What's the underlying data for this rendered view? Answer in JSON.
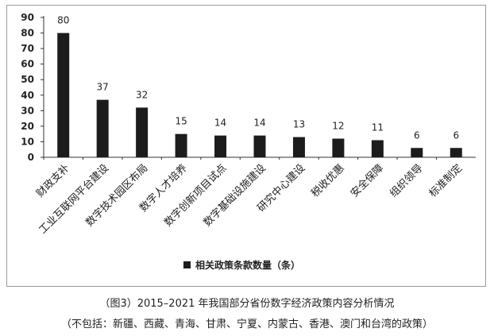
{
  "chart_data": {
    "type": "bar",
    "categories": [
      "财政支补",
      "工业互联网平台建设",
      "数字技术园区布局",
      "数字人才培养",
      "数字创新项目试点",
      "数字基础设施建设",
      "研究中心建设",
      "税收优惠",
      "安全保障",
      "组织领导",
      "标准制定"
    ],
    "series": [
      {
        "name": "相关政策条款数量（条）",
        "values": [
          80,
          37,
          32,
          15,
          14,
          14,
          13,
          12,
          11,
          6,
          6
        ]
      }
    ],
    "yticks": [
      0,
      10,
      20,
      30,
      40,
      50,
      60,
      70,
      80,
      90
    ],
    "ylim": [
      0,
      90
    ],
    "grid": false,
    "legend_position": "bottom",
    "bar_color": "#1c1c1c"
  },
  "caption": {
    "title": "（图3）2015–2021 年我国部分省份数字经济政策内容分析情况",
    "note": "（不包括：新疆、西藏、青海、甘肃、宁夏、内蒙古、香港、澳门和台湾的政策）"
  }
}
